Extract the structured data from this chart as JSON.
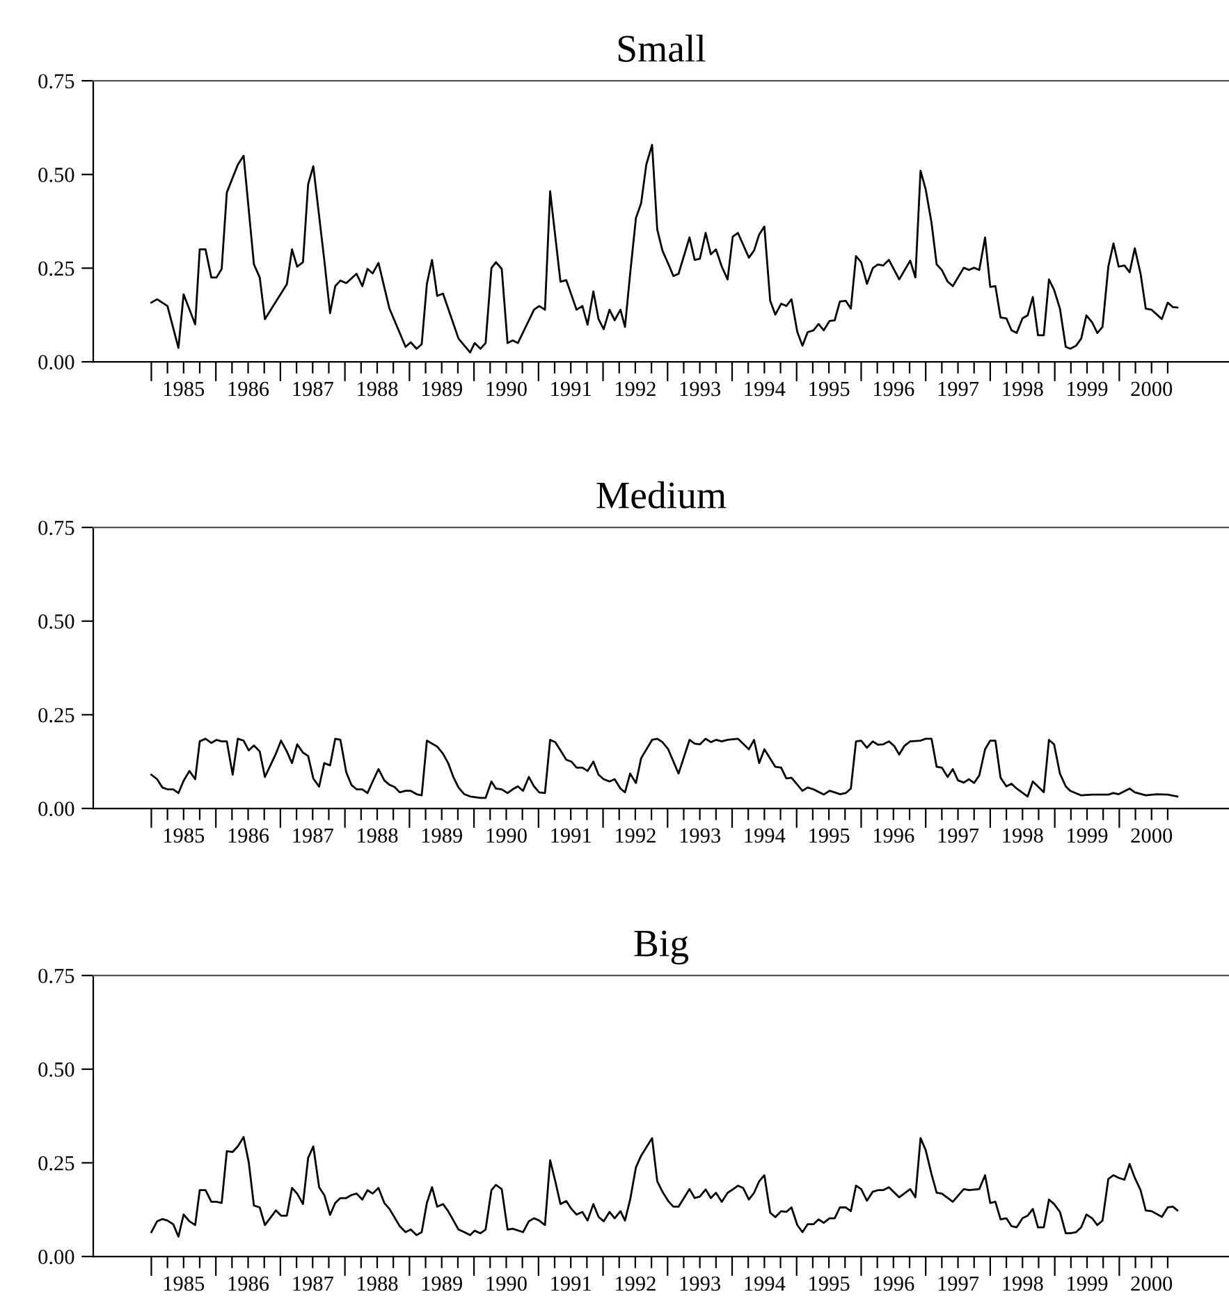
{
  "chart_data": [
    {
      "type": "line",
      "title": "Small",
      "x": [
        1985.0,
        1985.09,
        1985.25,
        1985.42,
        1985.5,
        1985.68,
        1985.75,
        1985.84,
        1985.93,
        1986.01,
        1986.09,
        1986.17,
        1986.34,
        1986.43,
        1986.59,
        1986.68,
        1986.76,
        1987.1,
        1987.18,
        1987.26,
        1987.35,
        1987.43,
        1987.51,
        1987.68,
        1987.77,
        1987.85,
        1987.93,
        1988.02,
        1988.18,
        1988.27,
        1988.35,
        1988.43,
        1988.52,
        1988.69,
        1988.94,
        1989.02,
        1989.11,
        1989.19,
        1989.27,
        1989.35,
        1989.43,
        1989.52,
        1989.76,
        1989.94,
        1990.01,
        1990.1,
        1990.18,
        1990.27,
        1990.34,
        1990.43,
        1990.52,
        1990.6,
        1990.68,
        1990.93,
        1991.01,
        1991.1,
        1991.18,
        1991.34,
        1991.43,
        1991.59,
        1991.68,
        1991.76,
        1991.85,
        1991.93,
        1992.01,
        1992.1,
        1992.18,
        1992.27,
        1992.34,
        1992.42,
        1992.51,
        1992.59,
        1992.67,
        1992.76,
        1992.84,
        1992.92,
        1993.01,
        1993.09,
        1993.17,
        1993.34,
        1993.42,
        1993.5,
        1993.59,
        1993.67,
        1993.75,
        1993.84,
        1993.93,
        1994.01,
        1994.09,
        1994.26,
        1994.34,
        1994.42,
        1994.5,
        1994.59,
        1994.67,
        1994.76,
        1994.84,
        1994.92,
        1995.01,
        1995.09,
        1995.17,
        1995.26,
        1995.34,
        1995.42,
        1995.51,
        1995.59,
        1995.67,
        1995.76,
        1995.84,
        1995.92,
        1996.0,
        1996.09,
        1996.18,
        1996.26,
        1996.34,
        1996.43,
        1996.59,
        1996.76,
        1996.84,
        1996.92,
        1997.0,
        1997.09,
        1997.17,
        1997.25,
        1997.34,
        1997.42,
        1997.59,
        1997.67,
        1997.75,
        1997.83,
        1997.92,
        1998.0,
        1998.08,
        1998.16,
        1998.25,
        1998.33,
        1998.41,
        1998.5,
        1998.58,
        1998.66,
        1998.74,
        1998.83,
        1998.91,
        1998.99,
        1999.08,
        1999.17,
        1999.24,
        1999.33,
        1999.41,
        1999.49,
        1999.58,
        1999.66,
        1999.74,
        1999.83,
        1999.91,
        1999.99,
        2000.08,
        2000.16,
        2000.24,
        2000.33,
        2000.41,
        2000.5,
        2000.66,
        2000.75,
        2000.83,
        2000.9
      ],
      "series": [
        {
          "color": "#000000",
          "values": [
            0.158,
            0.167,
            0.149,
            0.037,
            0.18,
            0.1,
            0.3,
            0.3,
            0.225,
            0.225,
            0.248,
            0.452,
            0.526,
            0.55,
            0.26,
            0.225,
            0.114,
            0.207,
            0.3,
            0.254,
            0.266,
            0.474,
            0.522,
            0.272,
            0.13,
            0.202,
            0.217,
            0.21,
            0.235,
            0.202,
            0.248,
            0.236,
            0.264,
            0.142,
            0.04,
            0.052,
            0.035,
            0.047,
            0.208,
            0.272,
            0.176,
            0.182,
            0.062,
            0.025,
            0.05,
            0.035,
            0.05,
            0.25,
            0.266,
            0.248,
            0.05,
            0.057,
            0.05,
            0.139,
            0.149,
            0.139,
            0.455,
            0.214,
            0.218,
            0.139,
            0.149,
            0.099,
            0.188,
            0.114,
            0.087,
            0.139,
            0.111,
            0.139,
            0.093,
            0.235,
            0.384,
            0.423,
            0.526,
            0.579,
            0.353,
            0.297,
            0.262,
            0.229,
            0.235,
            0.332,
            0.272,
            0.275,
            0.344,
            0.287,
            0.3,
            0.254,
            0.22,
            0.334,
            0.344,
            0.278,
            0.297,
            0.34,
            0.361,
            0.163,
            0.126,
            0.155,
            0.149,
            0.167,
            0.08,
            0.043,
            0.079,
            0.084,
            0.101,
            0.084,
            0.109,
            0.111,
            0.161,
            0.163,
            0.142,
            0.282,
            0.266,
            0.208,
            0.25,
            0.26,
            0.257,
            0.272,
            0.22,
            0.27,
            0.225,
            0.51,
            0.46,
            0.371,
            0.26,
            0.245,
            0.214,
            0.202,
            0.251,
            0.245,
            0.251,
            0.245,
            0.332,
            0.2,
            0.202,
            0.118,
            0.116,
            0.084,
            0.077,
            0.116,
            0.124,
            0.173,
            0.071,
            0.071,
            0.22,
            0.192,
            0.142,
            0.04,
            0.035,
            0.043,
            0.062,
            0.124,
            0.105,
            0.077,
            0.093,
            0.254,
            0.316,
            0.254,
            0.257,
            0.239,
            0.303,
            0.235,
            0.142,
            0.139,
            0.114,
            0.158,
            0.146,
            0.145
          ]
        }
      ],
      "xlim": [
        1984.1,
        2001.7
      ],
      "ylim": [
        0,
        0.75
      ],
      "yticks": [
        {
          "value": 0,
          "label": "0.00"
        },
        {
          "value": 0.25,
          "label": "0.25"
        },
        {
          "value": 0.5,
          "label": "0.50"
        },
        {
          "value": 0.75,
          "label": "0.75"
        }
      ],
      "xticks": [
        {
          "value": 1985,
          "label": null
        },
        {
          "value": 1985.25,
          "label": null
        },
        {
          "value": 1985.5,
          "label": "1985"
        },
        {
          "value": 1985.75,
          "label": null
        },
        {
          "value": 1986,
          "label": null
        },
        {
          "value": 1986.25,
          "label": null
        },
        {
          "value": 1986.5,
          "label": "1986"
        },
        {
          "value": 1986.75,
          "label": null
        },
        {
          "value": 1987,
          "label": null
        },
        {
          "value": 1987.25,
          "label": null
        },
        {
          "value": 1987.5,
          "label": "1987"
        },
        {
          "value": 1987.75,
          "label": null
        },
        {
          "value": 1988,
          "label": null
        },
        {
          "value": 1988.25,
          "label": null
        },
        {
          "value": 1988.5,
          "label": "1988"
        },
        {
          "value": 1988.75,
          "label": null
        },
        {
          "value": 1989,
          "label": null
        },
        {
          "value": 1989.25,
          "label": null
        },
        {
          "value": 1989.5,
          "label": "1989"
        },
        {
          "value": 1989.75,
          "label": null
        },
        {
          "value": 1990,
          "label": null
        },
        {
          "value": 1990.25,
          "label": null
        },
        {
          "value": 1990.5,
          "label": "1990"
        },
        {
          "value": 1990.75,
          "label": null
        },
        {
          "value": 1991,
          "label": null
        },
        {
          "value": 1991.25,
          "label": null
        },
        {
          "value": 1991.5,
          "label": "1991"
        },
        {
          "value": 1991.75,
          "label": null
        },
        {
          "value": 1992,
          "label": null
        },
        {
          "value": 1992.25,
          "label": null
        },
        {
          "value": 1992.5,
          "label": "1992"
        },
        {
          "value": 1992.75,
          "label": null
        },
        {
          "value": 1993,
          "label": null
        },
        {
          "value": 1993.25,
          "label": null
        },
        {
          "value": 1993.5,
          "label": "1993"
        },
        {
          "value": 1993.75,
          "label": null
        },
        {
          "value": 1994,
          "label": null
        },
        {
          "value": 1994.25,
          "label": null
        },
        {
          "value": 1994.5,
          "label": "1994"
        },
        {
          "value": 1994.75,
          "label": null
        },
        {
          "value": 1995,
          "label": null
        },
        {
          "value": 1995.25,
          "label": null
        },
        {
          "value": 1995.5,
          "label": "1995"
        },
        {
          "value": 1995.75,
          "label": null
        },
        {
          "value": 1996,
          "label": null
        },
        {
          "value": 1996.25,
          "label": null
        },
        {
          "value": 1996.5,
          "label": "1996"
        },
        {
          "value": 1996.75,
          "label": null
        },
        {
          "value": 1997,
          "label": null
        },
        {
          "value": 1997.25,
          "label": null
        },
        {
          "value": 1997.5,
          "label": "1997"
        },
        {
          "value": 1997.75,
          "label": null
        },
        {
          "value": 1998,
          "label": null
        },
        {
          "value": 1998.25,
          "label": null
        },
        {
          "value": 1998.5,
          "label": "1998"
        },
        {
          "value": 1998.75,
          "label": null
        },
        {
          "value": 1999,
          "label": null
        },
        {
          "value": 1999.25,
          "label": null
        },
        {
          "value": 1999.5,
          "label": "1999"
        },
        {
          "value": 1999.75,
          "label": null
        },
        {
          "value": 2000,
          "label": null
        },
        {
          "value": 2000.25,
          "label": null
        },
        {
          "value": 2000.5,
          "label": "2000"
        },
        {
          "value": 2000.75,
          "label": null
        }
      ]
    },
    {
      "type": "line",
      "title": "Medium",
      "x": [
        1985.0,
        1985.09,
        1985.17,
        1985.25,
        1985.34,
        1985.42,
        1985.5,
        1985.59,
        1985.68,
        1985.75,
        1985.84,
        1985.93,
        1986.01,
        1986.09,
        1986.17,
        1986.26,
        1986.34,
        1986.43,
        1986.51,
        1986.59,
        1986.68,
        1986.76,
        1986.84,
        1986.93,
        1987.01,
        1987.1,
        1987.18,
        1987.26,
        1987.35,
        1987.43,
        1987.51,
        1987.6,
        1987.68,
        1987.77,
        1987.85,
        1987.93,
        1988.02,
        1988.1,
        1988.18,
        1988.27,
        1988.35,
        1988.43,
        1988.52,
        1988.61,
        1988.69,
        1988.77,
        1988.85,
        1988.94,
        1989.02,
        1989.11,
        1989.19,
        1989.27,
        1989.43,
        1989.52,
        1989.6,
        1989.68,
        1989.76,
        1989.85,
        1989.94,
        1990.1,
        1990.18,
        1990.27,
        1990.34,
        1990.43,
        1990.52,
        1990.6,
        1990.68,
        1990.76,
        1990.85,
        1990.93,
        1991.01,
        1991.1,
        1991.18,
        1991.26,
        1991.34,
        1991.43,
        1991.51,
        1991.59,
        1991.68,
        1991.76,
        1991.85,
        1991.93,
        1992.01,
        1992.1,
        1992.18,
        1992.27,
        1992.34,
        1992.42,
        1992.51,
        1992.59,
        1992.76,
        1992.84,
        1992.92,
        1993.01,
        1993.17,
        1993.34,
        1993.42,
        1993.5,
        1993.59,
        1993.67,
        1993.75,
        1993.84,
        1993.93,
        1994.09,
        1994.26,
        1994.34,
        1994.42,
        1994.5,
        1994.67,
        1994.76,
        1994.84,
        1994.92,
        1995.09,
        1995.17,
        1995.26,
        1995.42,
        1995.51,
        1995.59,
        1995.67,
        1995.76,
        1995.84,
        1995.92,
        1996.0,
        1996.09,
        1996.18,
        1996.26,
        1996.34,
        1996.43,
        1996.51,
        1996.59,
        1996.67,
        1996.76,
        1996.92,
        1997.0,
        1997.09,
        1997.17,
        1997.25,
        1997.34,
        1997.42,
        1997.5,
        1997.59,
        1997.67,
        1997.75,
        1997.83,
        1997.92,
        1998.0,
        1998.08,
        1998.16,
        1998.25,
        1998.33,
        1998.41,
        1998.58,
        1998.66,
        1998.83,
        1998.91,
        1998.99,
        1999.08,
        1999.17,
        1999.24,
        1999.41,
        1999.58,
        1999.83,
        1999.91,
        1999.99,
        2000.16,
        2000.24,
        2000.41,
        2000.58,
        2000.75,
        2000.9
      ],
      "series": [
        {
          "color": "#000000",
          "values": [
            0.09,
            0.078,
            0.056,
            0.051,
            0.051,
            0.041,
            0.074,
            0.1,
            0.078,
            0.179,
            0.186,
            0.175,
            0.183,
            0.179,
            0.179,
            0.09,
            0.186,
            0.181,
            0.155,
            0.168,
            0.152,
            0.084,
            0.113,
            0.146,
            0.181,
            0.152,
            0.121,
            0.171,
            0.149,
            0.14,
            0.08,
            0.058,
            0.121,
            0.115,
            0.186,
            0.183,
            0.097,
            0.063,
            0.051,
            0.051,
            0.041,
            0.072,
            0.105,
            0.075,
            0.063,
            0.057,
            0.043,
            0.047,
            0.047,
            0.038,
            0.035,
            0.181,
            0.165,
            0.146,
            0.121,
            0.084,
            0.056,
            0.038,
            0.032,
            0.028,
            0.028,
            0.072,
            0.053,
            0.051,
            0.041,
            0.051,
            0.059,
            0.047,
            0.084,
            0.059,
            0.043,
            0.041,
            0.183,
            0.177,
            0.155,
            0.13,
            0.125,
            0.109,
            0.109,
            0.1,
            0.125,
            0.09,
            0.078,
            0.072,
            0.078,
            0.053,
            0.043,
            0.093,
            0.068,
            0.134,
            0.183,
            0.186,
            0.177,
            0.158,
            0.093,
            0.183,
            0.173,
            0.171,
            0.186,
            0.177,
            0.183,
            0.179,
            0.183,
            0.186,
            0.158,
            0.183,
            0.121,
            0.158,
            0.111,
            0.109,
            0.08,
            0.082,
            0.047,
            0.056,
            0.051,
            0.037,
            0.047,
            0.043,
            0.038,
            0.041,
            0.053,
            0.179,
            0.181,
            0.162,
            0.179,
            0.17,
            0.171,
            0.179,
            0.167,
            0.144,
            0.167,
            0.179,
            0.181,
            0.186,
            0.186,
            0.111,
            0.109,
            0.084,
            0.105,
            0.075,
            0.069,
            0.078,
            0.068,
            0.088,
            0.158,
            0.181,
            0.181,
            0.082,
            0.059,
            0.066,
            0.053,
            0.032,
            0.072,
            0.043,
            0.183,
            0.171,
            0.093,
            0.059,
            0.047,
            0.035,
            0.037,
            0.037,
            0.041,
            0.038,
            0.053,
            0.043,
            0.035,
            0.038,
            0.037,
            0.032
          ]
        }
      ],
      "xlim": [
        1984.1,
        2001.7
      ],
      "ylim": [
        0,
        0.75
      ],
      "yticks": [
        {
          "value": 0,
          "label": "0.00"
        },
        {
          "value": 0.25,
          "label": "0.25"
        },
        {
          "value": 0.5,
          "label": "0.50"
        },
        {
          "value": 0.75,
          "label": "0.75"
        }
      ],
      "xticks": [
        {
          "value": 1985,
          "label": null
        },
        {
          "value": 1985.25,
          "label": null
        },
        {
          "value": 1985.5,
          "label": "1985"
        },
        {
          "value": 1985.75,
          "label": null
        },
        {
          "value": 1986,
          "label": null
        },
        {
          "value": 1986.25,
          "label": null
        },
        {
          "value": 1986.5,
          "label": "1986"
        },
        {
          "value": 1986.75,
          "label": null
        },
        {
          "value": 1987,
          "label": null
        },
        {
          "value": 1987.25,
          "label": null
        },
        {
          "value": 1987.5,
          "label": "1987"
        },
        {
          "value": 1987.75,
          "label": null
        },
        {
          "value": 1988,
          "label": null
        },
        {
          "value": 1988.25,
          "label": null
        },
        {
          "value": 1988.5,
          "label": "1988"
        },
        {
          "value": 1988.75,
          "label": null
        },
        {
          "value": 1989,
          "label": null
        },
        {
          "value": 1989.25,
          "label": null
        },
        {
          "value": 1989.5,
          "label": "1989"
        },
        {
          "value": 1989.75,
          "label": null
        },
        {
          "value": 1990,
          "label": null
        },
        {
          "value": 1990.25,
          "label": null
        },
        {
          "value": 1990.5,
          "label": "1990"
        },
        {
          "value": 1990.75,
          "label": null
        },
        {
          "value": 1991,
          "label": null
        },
        {
          "value": 1991.25,
          "label": null
        },
        {
          "value": 1991.5,
          "label": "1991"
        },
        {
          "value": 1991.75,
          "label": null
        },
        {
          "value": 1992,
          "label": null
        },
        {
          "value": 1992.25,
          "label": null
        },
        {
          "value": 1992.5,
          "label": "1992"
        },
        {
          "value": 1992.75,
          "label": null
        },
        {
          "value": 1993,
          "label": null
        },
        {
          "value": 1993.25,
          "label": null
        },
        {
          "value": 1993.5,
          "label": "1993"
        },
        {
          "value": 1993.75,
          "label": null
        },
        {
          "value": 1994,
          "label": null
        },
        {
          "value": 1994.25,
          "label": null
        },
        {
          "value": 1994.5,
          "label": "1994"
        },
        {
          "value": 1994.75,
          "label": null
        },
        {
          "value": 1995,
          "label": null
        },
        {
          "value": 1995.25,
          "label": null
        },
        {
          "value": 1995.5,
          "label": "1995"
        },
        {
          "value": 1995.75,
          "label": null
        },
        {
          "value": 1996,
          "label": null
        },
        {
          "value": 1996.25,
          "label": null
        },
        {
          "value": 1996.5,
          "label": "1996"
        },
        {
          "value": 1996.75,
          "label": null
        },
        {
          "value": 1997,
          "label": null
        },
        {
          "value": 1997.25,
          "label": null
        },
        {
          "value": 1997.5,
          "label": "1997"
        },
        {
          "value": 1997.75,
          "label": null
        },
        {
          "value": 1998,
          "label": null
        },
        {
          "value": 1998.25,
          "label": null
        },
        {
          "value": 1998.5,
          "label": "1998"
        },
        {
          "value": 1998.75,
          "label": null
        },
        {
          "value": 1999,
          "label": null
        },
        {
          "value": 1999.25,
          "label": null
        },
        {
          "value": 1999.5,
          "label": "1999"
        },
        {
          "value": 1999.75,
          "label": null
        },
        {
          "value": 2000,
          "label": null
        },
        {
          "value": 2000.25,
          "label": null
        },
        {
          "value": 2000.5,
          "label": "2000"
        },
        {
          "value": 2000.75,
          "label": null
        }
      ]
    },
    {
      "type": "line",
      "title": "Big",
      "x": [
        1985.0,
        1985.09,
        1985.17,
        1985.25,
        1985.34,
        1985.42,
        1985.5,
        1985.59,
        1985.68,
        1985.75,
        1985.84,
        1985.93,
        1986.01,
        1986.09,
        1986.17,
        1986.26,
        1986.34,
        1986.43,
        1986.51,
        1986.59,
        1986.68,
        1986.76,
        1986.93,
        1987.01,
        1987.1,
        1987.18,
        1987.26,
        1987.35,
        1987.43,
        1987.51,
        1987.6,
        1987.68,
        1987.77,
        1987.85,
        1987.93,
        1988.02,
        1988.1,
        1988.18,
        1988.27,
        1988.35,
        1988.43,
        1988.52,
        1988.61,
        1988.69,
        1988.85,
        1988.94,
        1989.02,
        1989.11,
        1989.19,
        1989.27,
        1989.35,
        1989.43,
        1989.52,
        1989.6,
        1989.76,
        1989.85,
        1989.94,
        1990.01,
        1990.1,
        1990.18,
        1990.27,
        1990.34,
        1990.43,
        1990.52,
        1990.6,
        1990.76,
        1990.85,
        1990.93,
        1991.01,
        1991.1,
        1991.18,
        1991.26,
        1991.34,
        1991.43,
        1991.51,
        1991.59,
        1991.68,
        1991.76,
        1991.85,
        1991.93,
        1992.01,
        1992.1,
        1992.18,
        1992.27,
        1992.34,
        1992.42,
        1992.51,
        1992.59,
        1992.67,
        1992.76,
        1992.84,
        1992.92,
        1993.01,
        1993.09,
        1993.17,
        1993.34,
        1993.42,
        1993.5,
        1993.59,
        1993.67,
        1993.75,
        1993.84,
        1993.93,
        1994.01,
        1994.09,
        1994.17,
        1994.26,
        1994.34,
        1994.42,
        1994.5,
        1994.59,
        1994.67,
        1994.76,
        1994.84,
        1994.92,
        1995.01,
        1995.09,
        1995.17,
        1995.26,
        1995.34,
        1995.42,
        1995.51,
        1995.59,
        1995.67,
        1995.76,
        1995.84,
        1995.92,
        1996.0,
        1996.09,
        1996.18,
        1996.26,
        1996.34,
        1996.43,
        1996.59,
        1996.76,
        1996.84,
        1996.92,
        1997.0,
        1997.09,
        1997.17,
        1997.25,
        1997.42,
        1997.59,
        1997.67,
        1997.83,
        1997.92,
        1998.0,
        1998.08,
        1998.16,
        1998.25,
        1998.33,
        1998.41,
        1998.5,
        1998.58,
        1998.66,
        1998.74,
        1998.83,
        1998.91,
        1998.99,
        1999.08,
        1999.17,
        1999.24,
        1999.33,
        1999.41,
        1999.49,
        1999.58,
        1999.66,
        1999.74,
        1999.83,
        1999.91,
        1999.99,
        2000.08,
        2000.16,
        2000.24,
        2000.33,
        2000.41,
        2000.5,
        2000.66,
        2000.75,
        2000.83,
        2000.9
      ],
      "series": [
        {
          "color": "#000000",
          "values": [
            0.065,
            0.094,
            0.1,
            0.096,
            0.086,
            0.053,
            0.112,
            0.094,
            0.084,
            0.177,
            0.177,
            0.146,
            0.146,
            0.143,
            0.281,
            0.279,
            0.294,
            0.319,
            0.251,
            0.136,
            0.131,
            0.084,
            0.123,
            0.109,
            0.109,
            0.183,
            0.168,
            0.14,
            0.263,
            0.294,
            0.185,
            0.164,
            0.111,
            0.143,
            0.156,
            0.156,
            0.164,
            0.168,
            0.152,
            0.177,
            0.168,
            0.183,
            0.143,
            0.127,
            0.081,
            0.065,
            0.072,
            0.057,
            0.065,
            0.143,
            0.185,
            0.133,
            0.14,
            0.121,
            0.072,
            0.065,
            0.057,
            0.069,
            0.062,
            0.072,
            0.177,
            0.191,
            0.18,
            0.072,
            0.074,
            0.065,
            0.094,
            0.102,
            0.096,
            0.084,
            0.257,
            0.201,
            0.14,
            0.148,
            0.127,
            0.112,
            0.119,
            0.096,
            0.14,
            0.106,
            0.094,
            0.119,
            0.102,
            0.121,
            0.096,
            0.152,
            0.238,
            0.269,
            0.291,
            0.316,
            0.201,
            0.173,
            0.148,
            0.133,
            0.133,
            0.18,
            0.156,
            0.16,
            0.179,
            0.156,
            0.17,
            0.146,
            0.17,
            0.179,
            0.189,
            0.183,
            0.152,
            0.17,
            0.201,
            0.217,
            0.117,
            0.105,
            0.121,
            0.119,
            0.131,
            0.084,
            0.065,
            0.086,
            0.086,
            0.099,
            0.09,
            0.102,
            0.102,
            0.131,
            0.131,
            0.121,
            0.189,
            0.18,
            0.149,
            0.173,
            0.177,
            0.177,
            0.185,
            0.158,
            0.18,
            0.158,
            0.316,
            0.284,
            0.22,
            0.17,
            0.168,
            0.146,
            0.18,
            0.177,
            0.18,
            0.217,
            0.143,
            0.146,
            0.099,
            0.102,
            0.081,
            0.078,
            0.102,
            0.109,
            0.127,
            0.078,
            0.078,
            0.152,
            0.14,
            0.119,
            0.062,
            0.062,
            0.065,
            0.078,
            0.112,
            0.102,
            0.084,
            0.096,
            0.207,
            0.217,
            0.21,
            0.205,
            0.247,
            0.21,
            0.177,
            0.123,
            0.121,
            0.106,
            0.131,
            0.133,
            0.123
          ]
        }
      ],
      "xlim": [
        1984.1,
        2001.7
      ],
      "ylim": [
        0,
        0.75
      ],
      "yticks": [
        {
          "value": 0,
          "label": "0.00"
        },
        {
          "value": 0.25,
          "label": "0.25"
        },
        {
          "value": 0.5,
          "label": "0.50"
        },
        {
          "value": 0.75,
          "label": "0.75"
        }
      ],
      "xticks": [
        {
          "value": 1985,
          "label": null
        },
        {
          "value": 1985.25,
          "label": null
        },
        {
          "value": 1985.5,
          "label": "1985"
        },
        {
          "value": 1985.75,
          "label": null
        },
        {
          "value": 1986,
          "label": null
        },
        {
          "value": 1986.25,
          "label": null
        },
        {
          "value": 1986.5,
          "label": "1986"
        },
        {
          "value": 1986.75,
          "label": null
        },
        {
          "value": 1987,
          "label": null
        },
        {
          "value": 1987.25,
          "label": null
        },
        {
          "value": 1987.5,
          "label": "1987"
        },
        {
          "value": 1987.75,
          "label": null
        },
        {
          "value": 1988,
          "label": null
        },
        {
          "value": 1988.25,
          "label": null
        },
        {
          "value": 1988.5,
          "label": "1988"
        },
        {
          "value": 1988.75,
          "label": null
        },
        {
          "value": 1989,
          "label": null
        },
        {
          "value": 1989.25,
          "label": null
        },
        {
          "value": 1989.5,
          "label": "1989"
        },
        {
          "value": 1989.75,
          "label": null
        },
        {
          "value": 1990,
          "label": null
        },
        {
          "value": 1990.25,
          "label": null
        },
        {
          "value": 1990.5,
          "label": "1990"
        },
        {
          "value": 1990.75,
          "label": null
        },
        {
          "value": 1991,
          "label": null
        },
        {
          "value": 1991.25,
          "label": null
        },
        {
          "value": 1991.5,
          "label": "1991"
        },
        {
          "value": 1991.75,
          "label": null
        },
        {
          "value": 1992,
          "label": null
        },
        {
          "value": 1992.25,
          "label": null
        },
        {
          "value": 1992.5,
          "label": "1992"
        },
        {
          "value": 1992.75,
          "label": null
        },
        {
          "value": 1993,
          "label": null
        },
        {
          "value": 1993.25,
          "label": null
        },
        {
          "value": 1993.5,
          "label": "1993"
        },
        {
          "value": 1993.75,
          "label": null
        },
        {
          "value": 1994,
          "label": null
        },
        {
          "value": 1994.25,
          "label": null
        },
        {
          "value": 1994.5,
          "label": "1994"
        },
        {
          "value": 1994.75,
          "label": null
        },
        {
          "value": 1995,
          "label": null
        },
        {
          "value": 1995.25,
          "label": null
        },
        {
          "value": 1995.5,
          "label": "1995"
        },
        {
          "value": 1995.75,
          "label": null
        },
        {
          "value": 1996,
          "label": null
        },
        {
          "value": 1996.25,
          "label": null
        },
        {
          "value": 1996.5,
          "label": "1996"
        },
        {
          "value": 1996.75,
          "label": null
        },
        {
          "value": 1997,
          "label": null
        },
        {
          "value": 1997.25,
          "label": null
        },
        {
          "value": 1997.5,
          "label": "1997"
        },
        {
          "value": 1997.75,
          "label": null
        },
        {
          "value": 1998,
          "label": null
        },
        {
          "value": 1998.25,
          "label": null
        },
        {
          "value": 1998.5,
          "label": "1998"
        },
        {
          "value": 1998.75,
          "label": null
        },
        {
          "value": 1999,
          "label": null
        },
        {
          "value": 1999.25,
          "label": null
        },
        {
          "value": 1999.5,
          "label": "1999"
        },
        {
          "value": 1999.75,
          "label": null
        },
        {
          "value": 2000,
          "label": null
        },
        {
          "value": 2000.25,
          "label": null
        },
        {
          "value": 2000.5,
          "label": "2000"
        },
        {
          "value": 2000.75,
          "label": null
        }
      ]
    }
  ]
}
